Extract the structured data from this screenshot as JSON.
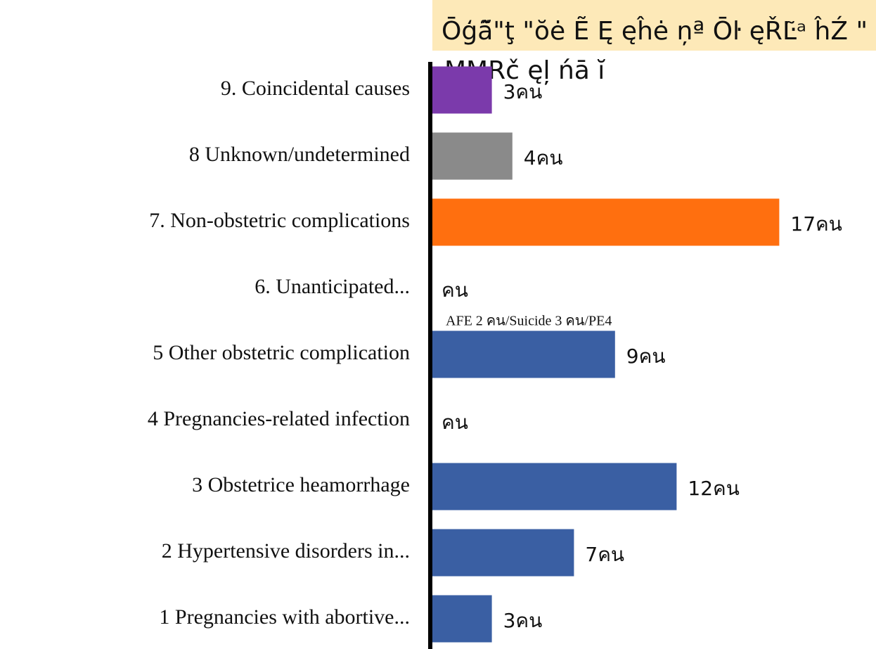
{
  "chart_data": {
    "type": "bar",
    "orientation": "horizontal",
    "title_lines": [
      "Ōģã̃\"ţ \"ŏė Ẽ Ę ęĥė ņª Ōŀ ęŘĿ̃ᵃ ĥŹ \"",
      "MMRč ęļ ńā ĭ"
    ],
    "annotation": "AFE 2 คน/Suicide 3 คน/PE4",
    "categories": [
      "9. Coincidental causes",
      "8 Unknown/undetermined",
      "7. Non-obstetric complications",
      "6. Unanticipated...",
      "5 Other obstetric complication",
      "4 Pregnancies-related infection",
      "3 Obstetrice heamorrhage",
      "2 Hypertensive disorders in...",
      "1 Pregnancies with abortive..."
    ],
    "values": [
      3,
      4,
      17,
      null,
      9,
      null,
      12,
      7,
      3
    ],
    "value_labels": [
      "3คน",
      "4คน",
      "17คน",
      "คน",
      "9คน",
      "คน",
      "12คน",
      "7คน",
      "3คน"
    ],
    "colors": [
      "#7b3aab",
      "#8a8a8a",
      "#ff6f0f",
      "#3a5fa3",
      "#3a5fa3",
      "#3a5fa3",
      "#3a5fa3",
      "#3a5fa3",
      "#3a5fa3"
    ],
    "xlim": [
      0,
      20
    ]
  }
}
